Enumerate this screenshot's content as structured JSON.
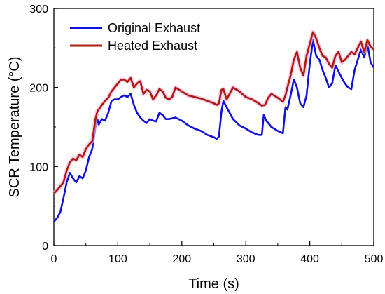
{
  "chart_data": {
    "type": "line",
    "xlabel": "Time (s)",
    "ylabel": "SCR Temperature (°C)",
    "xlim": [
      0,
      500
    ],
    "ylim": [
      0,
      300
    ],
    "xticks": [
      0,
      100,
      200,
      300,
      400,
      500
    ],
    "yticks": [
      0,
      100,
      200,
      300
    ],
    "grid": false,
    "legend": "top-left",
    "series": [
      {
        "name": "Original Exhaust",
        "color": "#1010e0",
        "x": [
          0,
          5,
          10,
          15,
          20,
          25,
          30,
          35,
          40,
          45,
          50,
          55,
          60,
          65,
          68,
          70,
          75,
          80,
          85,
          90,
          95,
          100,
          105,
          110,
          115,
          120,
          125,
          130,
          135,
          140,
          145,
          150,
          155,
          160,
          165,
          170,
          175,
          180,
          190,
          200,
          210,
          220,
          230,
          240,
          250,
          255,
          258,
          262,
          265,
          270,
          280,
          290,
          300,
          310,
          320,
          325,
          328,
          332,
          340,
          350,
          358,
          362,
          365,
          370,
          375,
          380,
          385,
          390,
          395,
          400,
          405,
          410,
          415,
          420,
          425,
          430,
          435,
          440,
          445,
          450,
          455,
          460,
          465,
          470,
          475,
          480,
          485,
          490,
          495,
          500
        ],
        "values": [
          30,
          35,
          42,
          60,
          80,
          92,
          85,
          80,
          88,
          85,
          95,
          112,
          122,
          150,
          160,
          153,
          160,
          158,
          168,
          183,
          185,
          185,
          188,
          190,
          188,
          192,
          178,
          168,
          162,
          158,
          155,
          160,
          158,
          157,
          168,
          165,
          160,
          160,
          162,
          158,
          152,
          148,
          145,
          140,
          137,
          135,
          138,
          170,
          183,
          175,
          160,
          152,
          148,
          143,
          140,
          140,
          165,
          158,
          150,
          145,
          142,
          175,
          172,
          190,
          210,
          200,
          180,
          175,
          190,
          230,
          260,
          240,
          235,
          222,
          212,
          200,
          205,
          228,
          220,
          212,
          205,
          200,
          198,
          222,
          235,
          248,
          238,
          255,
          232,
          225
        ]
      },
      {
        "name": "Heated Exhaust",
        "color": "#b01a10",
        "x": [
          0,
          5,
          10,
          15,
          20,
          25,
          30,
          35,
          40,
          45,
          50,
          55,
          60,
          65,
          68,
          70,
          75,
          80,
          85,
          90,
          95,
          100,
          105,
          110,
          115,
          120,
          125,
          130,
          135,
          140,
          145,
          150,
          155,
          160,
          165,
          170,
          175,
          180,
          185,
          190,
          200,
          210,
          220,
          230,
          240,
          250,
          255,
          258,
          262,
          265,
          270,
          280,
          290,
          300,
          310,
          320,
          325,
          330,
          335,
          340,
          350,
          358,
          362,
          365,
          370,
          375,
          380,
          385,
          390,
          395,
          400,
          405,
          410,
          415,
          420,
          425,
          430,
          435,
          440,
          445,
          450,
          455,
          460,
          465,
          470,
          475,
          480,
          485,
          490,
          495,
          500
        ],
        "values": [
          66,
          70,
          75,
          80,
          95,
          105,
          110,
          108,
          115,
          112,
          122,
          128,
          132,
          160,
          170,
          172,
          178,
          183,
          187,
          195,
          200,
          205,
          210,
          210,
          207,
          212,
          200,
          205,
          208,
          192,
          197,
          195,
          185,
          190,
          198,
          195,
          187,
          185,
          188,
          200,
          195,
          190,
          188,
          186,
          183,
          180,
          178,
          180,
          197,
          198,
          185,
          200,
          195,
          188,
          185,
          180,
          177,
          178,
          187,
          192,
          187,
          182,
          190,
          200,
          215,
          235,
          245,
          225,
          215,
          240,
          255,
          270,
          262,
          250,
          240,
          238,
          230,
          225,
          240,
          245,
          232,
          235,
          240,
          245,
          242,
          250,
          258,
          245,
          260,
          252,
          248
        ]
      }
    ]
  }
}
